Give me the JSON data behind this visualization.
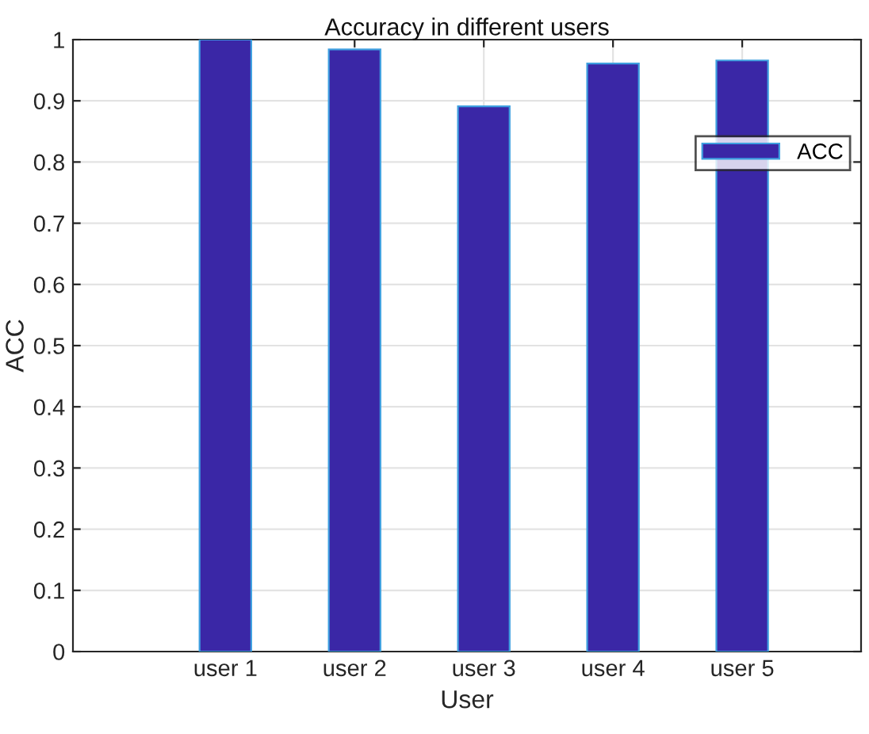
{
  "chart_data": {
    "type": "bar",
    "title": "Accuracy in different users",
    "xlabel": "User",
    "ylabel": "ACC",
    "categories": [
      "user 1",
      "user 2",
      "user 3",
      "user 4",
      "user 5"
    ],
    "series": [
      {
        "name": "ACC",
        "color": "#3a27a6",
        "values": [
          1.0,
          0.984,
          0.891,
          0.961,
          0.966
        ]
      }
    ],
    "ylim": [
      0,
      1
    ],
    "yticks": [
      0,
      0.1,
      0.2,
      0.3,
      0.4,
      0.5,
      0.6,
      0.7,
      0.8,
      0.9,
      1
    ],
    "grid": true,
    "legend": "top right"
  }
}
